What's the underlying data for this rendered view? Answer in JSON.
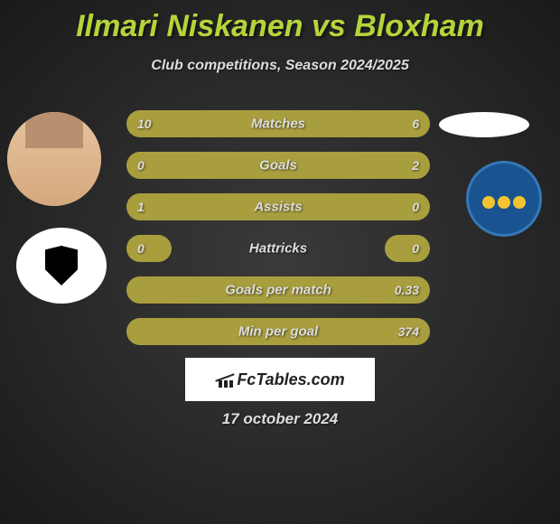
{
  "title": "Ilmari Niskanen vs Bloxham",
  "subtitle": "Club competitions, Season 2024/2025",
  "date": "17 october 2024",
  "watermark": "FcTables.com",
  "colors": {
    "accent": "#b5d439",
    "bar": "#a89e3e",
    "text": "#ddd",
    "badge_right_bg": "#1a5490",
    "badge_right_border": "#3478b8",
    "lion": "#f4c430",
    "background": "#1a1a1a"
  },
  "stats": [
    {
      "label": "Matches",
      "left_value": "10",
      "right_value": "6",
      "bar_type": "full"
    },
    {
      "label": "Goals",
      "left_value": "0",
      "right_value": "2",
      "bar_type": "full"
    },
    {
      "label": "Assists",
      "left_value": "1",
      "right_value": "0",
      "bar_type": "full"
    },
    {
      "label": "Hattricks",
      "left_value": "0",
      "right_value": "0",
      "bar_type": "split"
    },
    {
      "label": "Goals per match",
      "left_value": "",
      "right_value": "0.33",
      "bar_type": "full"
    },
    {
      "label": "Min per goal",
      "left_value": "",
      "right_value": "374",
      "bar_type": "full"
    }
  ]
}
